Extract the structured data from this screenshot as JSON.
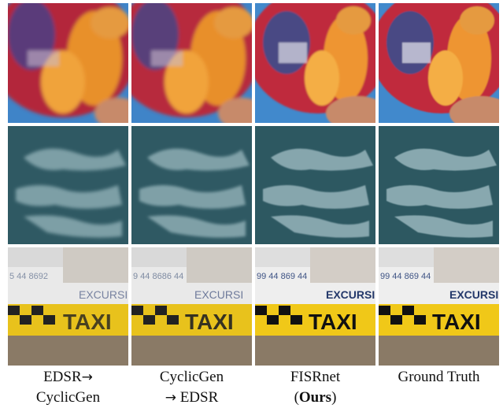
{
  "rows": [
    {
      "name": "soccer-ball",
      "texts": [
        "",
        "",
        "",
        ""
      ]
    },
    {
      "name": "water-surface",
      "texts": [
        "",
        "",
        "",
        ""
      ]
    },
    {
      "name": "taxi-boat",
      "numbers": [
        "5 44 8692",
        "9 44 8686 44",
        "99 44 869 44",
        "99 44 869 44"
      ],
      "words": [
        "EXCURSI",
        "EXCURSI",
        "EXCURSI",
        "EXCURSI"
      ],
      "taxi": "TAXI"
    }
  ],
  "columns": [
    {
      "line1": "EDSR",
      "arrow1": "→",
      "line2": "CyclicGen",
      "arrow2": ""
    },
    {
      "line1": "CyclicGen",
      "arrow1": "",
      "arrow2": "→",
      "line2": "EDSR"
    },
    {
      "line1": "FISRnet",
      "arrow1": "",
      "paren_open": "(",
      "bold": "Ours",
      "paren_close": ")"
    },
    {
      "line1": "Ground Truth"
    }
  ]
}
